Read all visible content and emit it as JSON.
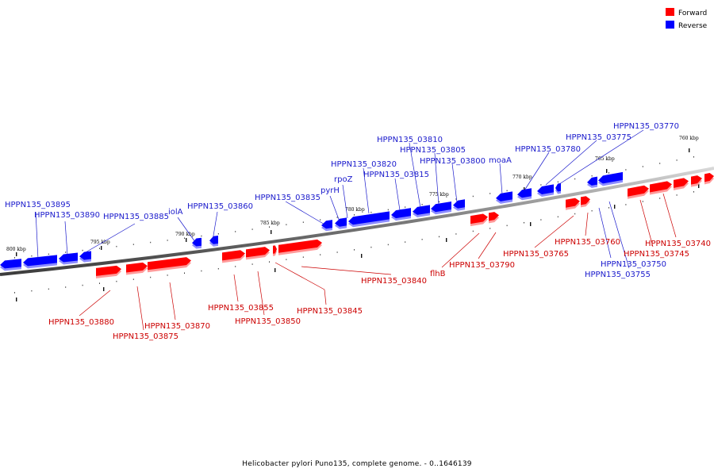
{
  "legend": [
    {
      "label": "Forward",
      "color": "#ff0000"
    },
    {
      "label": "Reverse",
      "color": "#0000ff"
    }
  ],
  "caption": "Helicobacter pylori Puno135, complete genome. - 0..1646139",
  "colors": {
    "forward": "#ff0000",
    "reverse": "#0000ff",
    "forward_label": "#cc0000",
    "reverse_label": "#1a1acc",
    "backbone": "#888888"
  },
  "ticks": [
    {
      "label": "800 kbp"
    },
    {
      "label": "795 kbp"
    },
    {
      "label": "790 kbp"
    },
    {
      "label": "785 kbp"
    },
    {
      "label": "780 kbp"
    },
    {
      "label": "775 kbp"
    },
    {
      "label": "770 kbp"
    },
    {
      "label": "765 kbp"
    },
    {
      "label": "760 kbp"
    }
  ],
  "reverse_genes": [
    {
      "label": "HPPN135_03895"
    },
    {
      "label": "HPPN135_03890"
    },
    {
      "label": "HPPN135_03885"
    },
    {
      "label": "iolA"
    },
    {
      "label": "HPPN135_03860"
    },
    {
      "label": "HPPN135_03835"
    },
    {
      "label": "pyrH"
    },
    {
      "label": "rpoZ"
    },
    {
      "label": "HPPN135_03820"
    },
    {
      "label": "HPPN135_03815"
    },
    {
      "label": "HPPN135_03810"
    },
    {
      "label": "HPPN135_03805"
    },
    {
      "label": "HPPN135_03800"
    },
    {
      "label": "moaA"
    },
    {
      "label": "HPPN135_03780"
    },
    {
      "label": "HPPN135_03775"
    },
    {
      "label": "HPPN135_03770"
    },
    {
      "label": "HPPN135_03750"
    },
    {
      "label": "HPPN135_03755"
    }
  ],
  "forward_genes": [
    {
      "label": "HPPN135_03880"
    },
    {
      "label": "HPPN135_03875"
    },
    {
      "label": "HPPN135_03870"
    },
    {
      "label": "HPPN135_03855"
    },
    {
      "label": "HPPN135_03850"
    },
    {
      "label": "HPPN135_03845"
    },
    {
      "label": "HPPN135_03840"
    },
    {
      "label": "flhB"
    },
    {
      "label": "HPPN135_03790"
    },
    {
      "label": "HPPN135_03765"
    },
    {
      "label": "HPPN135_03760"
    },
    {
      "label": "HPPN135_03745"
    },
    {
      "label": "HPPN135_03740"
    }
  ]
}
